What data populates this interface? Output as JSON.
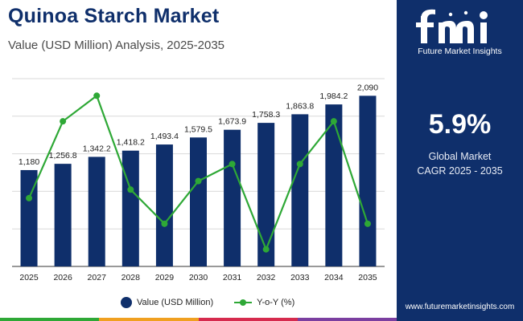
{
  "header": {
    "title": "Quinoa Starch Market",
    "subtitle": "Value (USD Million) Analysis, 2025-2035"
  },
  "chart_data": {
    "type": "bar",
    "categories": [
      "2025",
      "2026",
      "2027",
      "2028",
      "2029",
      "2030",
      "2031",
      "2032",
      "2033",
      "2034",
      "2035"
    ],
    "series": [
      {
        "name": "Value (USD Million)",
        "type": "bar",
        "values": [
          1180,
          1256.8,
          1342.2,
          1418.2,
          1493.4,
          1579.5,
          1673.9,
          1758.3,
          1863.8,
          1984.2,
          2090
        ],
        "labels": [
          "1,180",
          "1,256.8",
          "1,342.2",
          "1,418.2",
          "1,493.4",
          "1,579.5",
          "1,673.9",
          "1,758.3",
          "1,863.8",
          "1,984.2",
          "2,090"
        ],
        "color": "#0f2f6b"
      },
      {
        "name": "Y-o-Y (%)",
        "type": "line",
        "values": [
          5.6,
          6.5,
          6.8,
          5.7,
          5.3,
          5.8,
          6.0,
          5.0,
          6.0,
          6.5,
          5.3
        ],
        "color": "#2ea836"
      }
    ],
    "xlabel": "",
    "ylabel": "",
    "ylim": [
      0,
      2300
    ],
    "y2lim": [
      4.8,
      7.0
    ],
    "grid": true,
    "legend_position": "bottom"
  },
  "legend": {
    "bar_label": "Value (USD Million)",
    "line_label": "Y-o-Y (%)"
  },
  "sidebar": {
    "logo_text": "Future Market Insights",
    "cagr_value": "5.9%",
    "cagr_line1": "Global Market",
    "cagr_line2": "CAGR 2025 - 2035",
    "website": "www.futuremarketinsights.com"
  },
  "colors": {
    "navy": "#0f2f6b",
    "green": "#2ea836",
    "bottom_bar": [
      "#2ea836",
      "#f0a020",
      "#d62a4e",
      "#7b3fa0"
    ]
  }
}
